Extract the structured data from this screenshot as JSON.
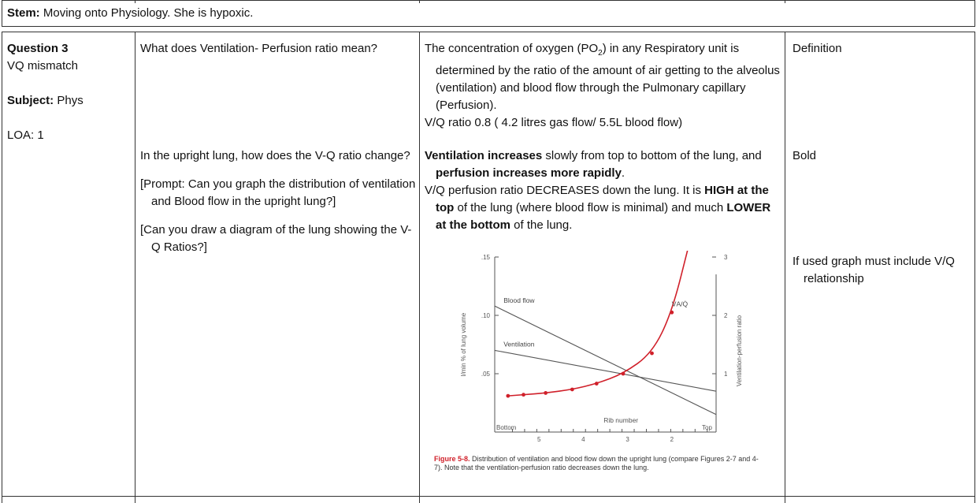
{
  "stem": {
    "label": "Stem:",
    "text": " Moving onto Physiology. She is hypoxic."
  },
  "col1": {
    "question_title": "Question 3",
    "topic": "VQ mismatch",
    "subject_label": "Subject:",
    "subject_value": " Phys",
    "loa": "LOA: 1"
  },
  "col2": {
    "q1": "What does Ventilation- Perfusion ratio mean?",
    "q2": "In the upright lung, how does the V-Q ratio change?",
    "prompt1": "[Prompt: Can you graph the distribution of ventilation and Blood flow in the upright lung?]",
    "prompt2": "[Can you draw a diagram of the lung showing the V-Q Ratios?]"
  },
  "col3": {
    "a1_part1": "The concentration of oxygen (PO",
    "a1_sub": "2",
    "a1_part2": ") in any Respiratory unit is determined by the ratio of the amount of air getting to the alveolus (ventilation) and blood flow through the Pulmonary capillary (Perfusion).",
    "a1_line2": "V/Q ratio 0.8 ( 4.2 litres gas flow/ 5.5L blood flow)",
    "a2_b1": "Ventilation increases",
    "a2_t1": " slowly from top to bottom of the lung, and ",
    "a2_b2": "perfusion increases more rapidly",
    "a2_t2": ".",
    "a3_t1": "V/Q perfusion ratio DECREASES down the lung. It is ",
    "a3_b1": "HIGH at the top",
    "a3_t2": " of the lung (where blood flow is minimal) and much ",
    "a3_b2": "LOWER at the bottom",
    "a3_t3": " of the lung."
  },
  "col4": {
    "note1": "Definition",
    "note2": "Bold",
    "note3": "If used graph must include V/Q relationship"
  },
  "figure": {
    "caption_label": "Figure 5-8.",
    "caption_text": " Distribution of ventilation and blood flow down the upright lung (compare Figures 2-7 and 4-7). Note that the ventilation-perfusion ratio decreases down the lung."
  },
  "chart_data": {
    "type": "line",
    "xlabel": "Rib number",
    "ylabel": "l/min % of lung volume",
    "ylabel2": "Ventilation-perfusion ratio",
    "x_end_labels": [
      "Bottom",
      "Top"
    ],
    "x_ticks": [
      "5",
      "4",
      "3",
      "2"
    ],
    "y_ticks": [
      ".15",
      ".10",
      ".05"
    ],
    "y2_ticks": [
      "3",
      "2",
      "1"
    ],
    "ylim": [
      0,
      0.15
    ],
    "y2lim": [
      0,
      3
    ],
    "grid": false,
    "series": [
      {
        "name": "Blood flow",
        "axis": "left",
        "color": "#555555",
        "x": [
          0,
          1
        ],
        "y": [
          0.108,
          0.015
        ]
      },
      {
        "name": "Ventilation",
        "axis": "left",
        "color": "#555555",
        "x": [
          0,
          1
        ],
        "y": [
          0.07,
          0.035
        ]
      },
      {
        "name": "V̇A/Q̇",
        "axis": "right",
        "color": "#d0202a",
        "x": [
          0.06,
          0.13,
          0.23,
          0.35,
          0.46,
          0.58,
          0.71,
          0.8,
          0.88
        ],
        "y": [
          0.62,
          0.64,
          0.67,
          0.73,
          0.83,
          1.0,
          1.35,
          2.05,
          3.25
        ]
      }
    ]
  }
}
